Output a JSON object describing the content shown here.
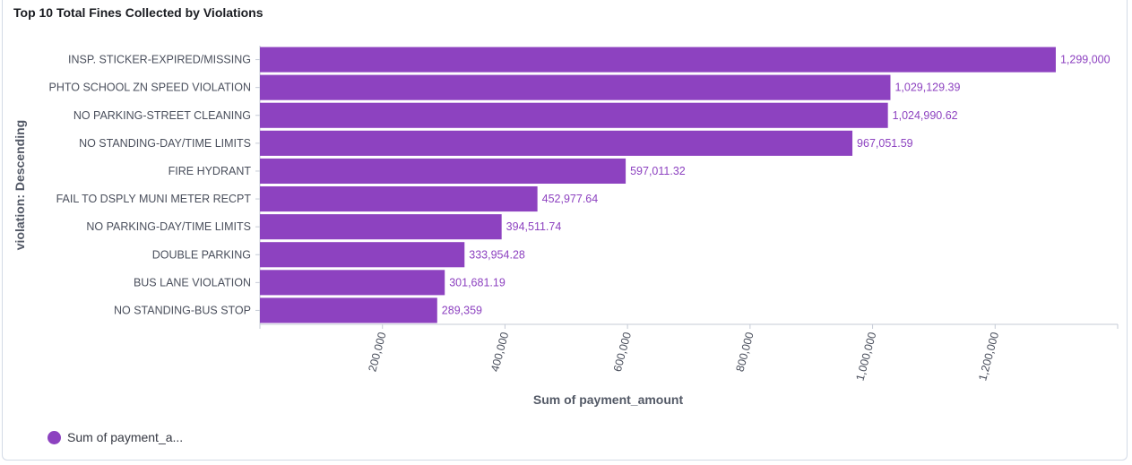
{
  "panel": {
    "title": "Top 10 Total Fines Collected by Violations"
  },
  "legend": {
    "label": "Sum of payment_a...",
    "color": "#8d42c0"
  },
  "chart_data": {
    "type": "bar",
    "orientation": "horizontal",
    "title": "Top 10 Total Fines Collected by Violations",
    "ylabel": "violation: Descending",
    "xlabel": "Sum of payment_amount",
    "xlim": [
      0,
      1400000
    ],
    "xticks": [
      200000,
      400000,
      600000,
      800000,
      1000000,
      1200000
    ],
    "xtick_labels": [
      "200,000",
      "400,000",
      "600,000",
      "800,000",
      "1,000,000",
      "1,200,000"
    ],
    "categories": [
      "INSP. STICKER-EXPIRED/MISSING",
      "PHTO SCHOOL ZN SPEED VIOLATION",
      "NO PARKING-STREET CLEANING",
      "NO STANDING-DAY/TIME LIMITS",
      "FIRE HYDRANT",
      "FAIL TO DSPLY MUNI METER RECPT",
      "NO PARKING-DAY/TIME LIMITS",
      "DOUBLE PARKING",
      "BUS LANE VIOLATION",
      "NO STANDING-BUS STOP"
    ],
    "values": [
      1299000,
      1029129.39,
      1024990.62,
      967051.59,
      597011.32,
      452977.64,
      394511.74,
      333954.28,
      301681.19,
      289359
    ],
    "value_labels": [
      "1,299,000",
      "1,029,129.39",
      "1,024,990.62",
      "967,051.59",
      "597,011.32",
      "452,977.64",
      "394,511.74",
      "333,954.28",
      "301,681.19",
      "289,359"
    ],
    "series": [
      {
        "name": "Sum of payment_a...",
        "color": "#8d42c0"
      }
    ],
    "legend_position": "bottom-left",
    "grid": false
  }
}
